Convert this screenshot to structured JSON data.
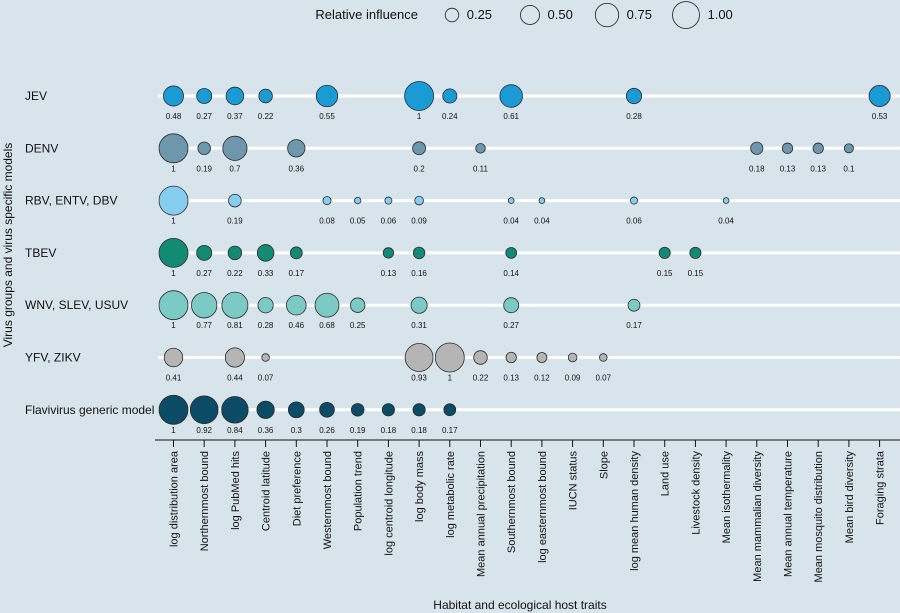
{
  "chart_data": {
    "type": "scatter",
    "legend_title": "Relative influence",
    "legend": [
      {
        "label": "0.25",
        "value": 0.25
      },
      {
        "label": "0.50",
        "value": 0.5
      },
      {
        "label": "0.75",
        "value": 0.75
      },
      {
        "label": "1.00",
        "value": 1.0
      }
    ],
    "xlabel": "Habitat and ecological host traits",
    "ylabel": "Virus groups and virus specific models",
    "categories": [
      "log distribution area",
      "Northernmost bound",
      "log PubMed hits",
      "Centroid latitude",
      "Diet preference",
      "Westernmost bound",
      "Population trend",
      "log centroid longitude",
      "log body mass",
      "log metabolic rate",
      "Mean annual precipitation",
      "Southernmost bound",
      "log easternmost bound",
      "IUCN status",
      "Slope",
      "log mean human density",
      "Land use",
      "Livestock density",
      "Mean isothermality",
      "Mean mammalian diversity",
      "Mean annual temperature",
      "Mean mosquito distribution",
      "Mean bird diversity",
      "Foraging strata"
    ],
    "series": [
      {
        "name": "JEV",
        "color": "#1a9bd6",
        "points": [
          {
            "x": 0,
            "value": 0.48,
            "label": "0.48"
          },
          {
            "x": 1,
            "value": 0.27,
            "label": "0.27"
          },
          {
            "x": 2,
            "value": 0.37,
            "label": "0.37"
          },
          {
            "x": 3,
            "value": 0.22,
            "label": "0.22"
          },
          {
            "x": 5,
            "value": 0.55,
            "label": "0.55"
          },
          {
            "x": 8,
            "value": 1,
            "label": "1"
          },
          {
            "x": 9,
            "value": 0.24,
            "label": "0.24"
          },
          {
            "x": 11,
            "value": 0.61,
            "label": "0.61"
          },
          {
            "x": 15,
            "value": 0.28,
            "label": "0.28"
          },
          {
            "x": 23,
            "value": 0.53,
            "label": "0.53"
          }
        ]
      },
      {
        "name": "DENV",
        "color": "#6e97ab",
        "points": [
          {
            "x": 0,
            "value": 1,
            "label": "1"
          },
          {
            "x": 1,
            "value": 0.19,
            "label": "0.19"
          },
          {
            "x": 2,
            "value": 0.7,
            "label": "0.7"
          },
          {
            "x": 4,
            "value": 0.36,
            "label": "0.36"
          },
          {
            "x": 8,
            "value": 0.2,
            "label": "0.2"
          },
          {
            "x": 10,
            "value": 0.11,
            "label": "0.11"
          },
          {
            "x": 19,
            "value": 0.18,
            "label": "0.18"
          },
          {
            "x": 20,
            "value": 0.13,
            "label": "0.13"
          },
          {
            "x": 21,
            "value": 0.13,
            "label": "0.13"
          },
          {
            "x": 22,
            "value": 0.1,
            "label": "0.1"
          }
        ]
      },
      {
        "name": "RBV, ENTV, DBV",
        "color": "#86cdf0",
        "points": [
          {
            "x": 0,
            "value": 1,
            "label": "1"
          },
          {
            "x": 2,
            "value": 0.19,
            "label": "0.19"
          },
          {
            "x": 5,
            "value": 0.08,
            "label": "0.08"
          },
          {
            "x": 6,
            "value": 0.05,
            "label": "0.05"
          },
          {
            "x": 7,
            "value": 0.06,
            "label": "0.06"
          },
          {
            "x": 8,
            "value": 0.09,
            "label": "0.09"
          },
          {
            "x": 11,
            "value": 0.04,
            "label": "0.04"
          },
          {
            "x": 12,
            "value": 0.04,
            "label": "0.04"
          },
          {
            "x": 15,
            "value": 0.06,
            "label": "0.06"
          },
          {
            "x": 18,
            "value": 0.04,
            "label": "0.04"
          }
        ]
      },
      {
        "name": "TBEV",
        "color": "#138a74",
        "points": [
          {
            "x": 0,
            "value": 1,
            "label": "1"
          },
          {
            "x": 1,
            "value": 0.27,
            "label": "0.27"
          },
          {
            "x": 2,
            "value": 0.22,
            "label": "0.22"
          },
          {
            "x": 3,
            "value": 0.33,
            "label": "0.33"
          },
          {
            "x": 4,
            "value": 0.17,
            "label": "0.17"
          },
          {
            "x": 7,
            "value": 0.13,
            "label": "0.13"
          },
          {
            "x": 8,
            "value": 0.16,
            "label": "0.16"
          },
          {
            "x": 11,
            "value": 0.14,
            "label": "0.14"
          },
          {
            "x": 16,
            "value": 0.15,
            "label": "0.15"
          },
          {
            "x": 17,
            "value": 0.15,
            "label": "0.15"
          }
        ]
      },
      {
        "name": "WNV, SLEV, USUV",
        "color": "#7ccac5",
        "points": [
          {
            "x": 0,
            "value": 1,
            "label": "1"
          },
          {
            "x": 1,
            "value": 0.77,
            "label": "0.77"
          },
          {
            "x": 2,
            "value": 0.81,
            "label": "0.81"
          },
          {
            "x": 3,
            "value": 0.28,
            "label": "0.28"
          },
          {
            "x": 4,
            "value": 0.46,
            "label": "0.46"
          },
          {
            "x": 5,
            "value": 0.68,
            "label": "0.68"
          },
          {
            "x": 6,
            "value": 0.25,
            "label": "0.25"
          },
          {
            "x": 8,
            "value": 0.31,
            "label": "0.31"
          },
          {
            "x": 11,
            "value": 0.27,
            "label": "0.27"
          },
          {
            "x": 15,
            "value": 0.17,
            "label": "0.17"
          }
        ]
      },
      {
        "name": "YFV, ZIKV",
        "color": "#b5b5b5",
        "points": [
          {
            "x": 0,
            "value": 0.41,
            "label": "0.41"
          },
          {
            "x": 2,
            "value": 0.44,
            "label": "0.44"
          },
          {
            "x": 3,
            "value": 0.07,
            "label": "0.07"
          },
          {
            "x": 8,
            "value": 0.93,
            "label": "0.93"
          },
          {
            "x": 9,
            "value": 1,
            "label": "1"
          },
          {
            "x": 10,
            "value": 0.22,
            "label": "0.22"
          },
          {
            "x": 11,
            "value": 0.13,
            "label": "0.13"
          },
          {
            "x": 12,
            "value": 0.12,
            "label": "0.12"
          },
          {
            "x": 13,
            "value": 0.09,
            "label": "0.09"
          },
          {
            "x": 14,
            "value": 0.07,
            "label": "0.07"
          }
        ]
      },
      {
        "name": "Flavivirus generic model",
        "color": "#0b4b66",
        "points": [
          {
            "x": 0,
            "value": 1,
            "label": "1"
          },
          {
            "x": 1,
            "value": 0.92,
            "label": "0.92"
          },
          {
            "x": 2,
            "value": 0.84,
            "label": "0.84"
          },
          {
            "x": 3,
            "value": 0.36,
            "label": "0.36"
          },
          {
            "x": 4,
            "value": 0.3,
            "label": "0.3"
          },
          {
            "x": 5,
            "value": 0.26,
            "label": "0.26"
          },
          {
            "x": 6,
            "value": 0.19,
            "label": "0.19"
          },
          {
            "x": 7,
            "value": 0.18,
            "label": "0.18"
          },
          {
            "x": 8,
            "value": 0.18,
            "label": "0.18"
          },
          {
            "x": 9,
            "value": 0.17,
            "label": "0.17"
          }
        ]
      }
    ]
  }
}
